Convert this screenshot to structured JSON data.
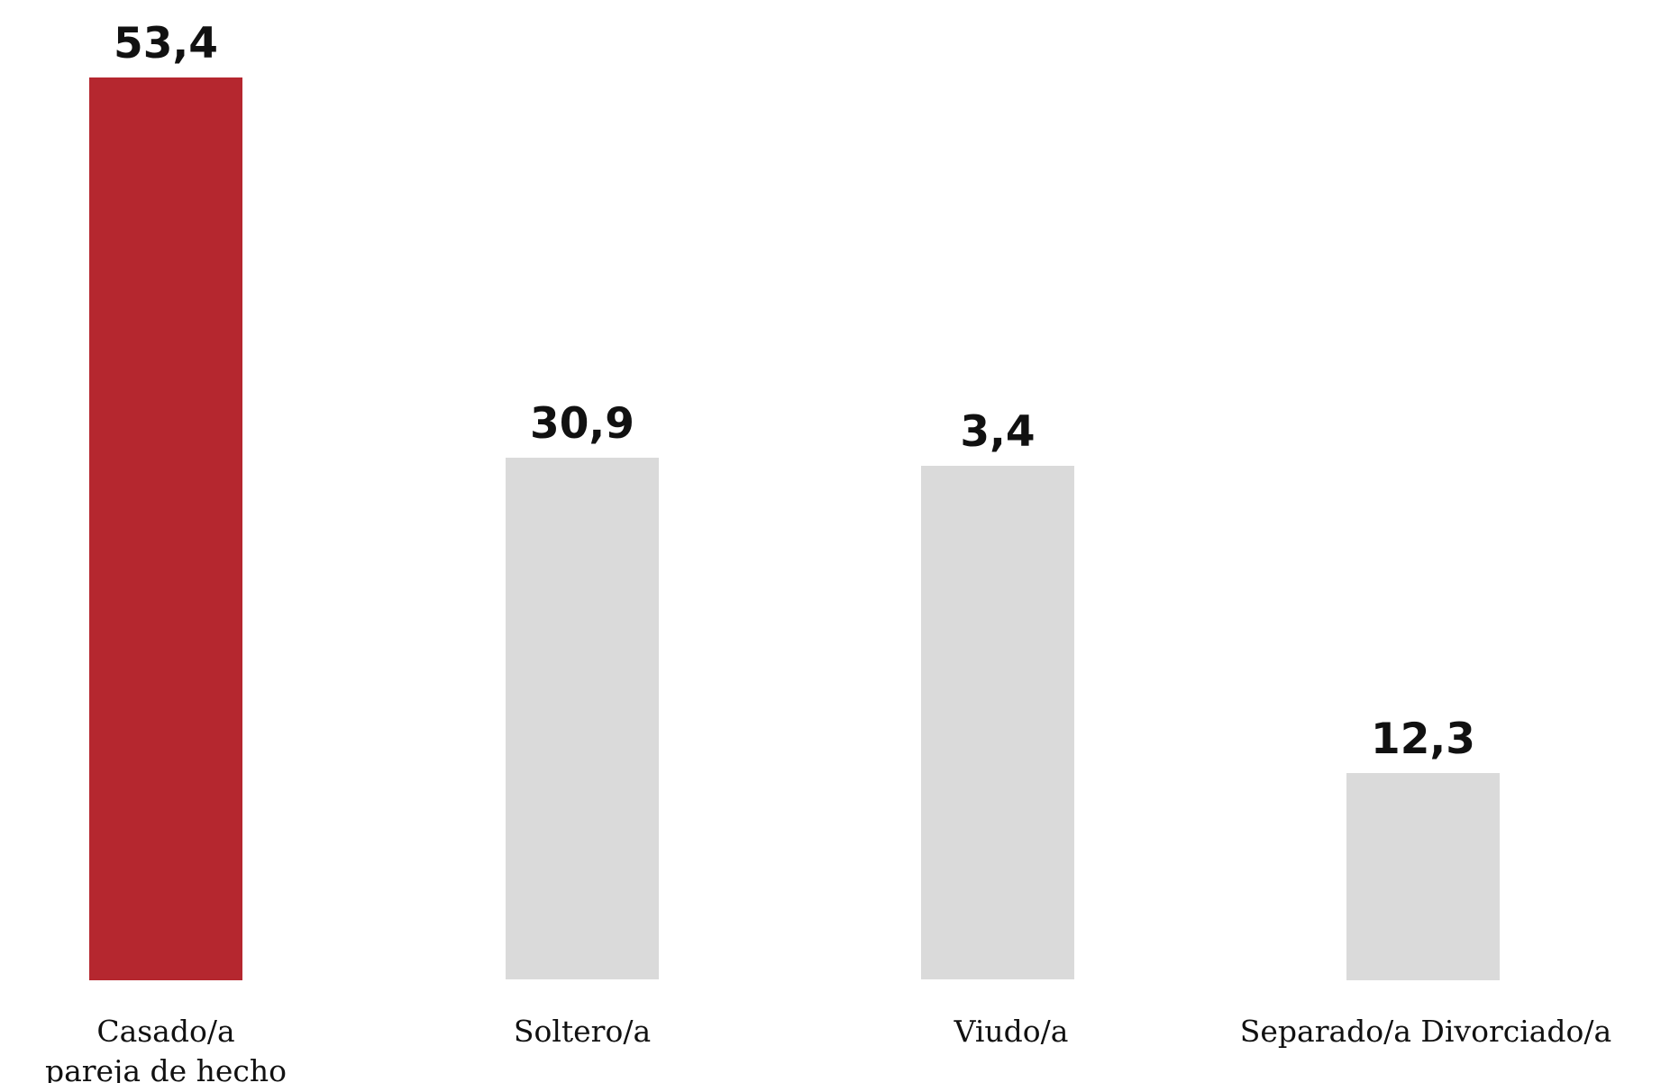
{
  "chart_data": {
    "type": "bar",
    "categories": [
      [
        "Casado/a",
        "pareja de hecho"
      ],
      [
        "Soltero/a"
      ],
      [
        "Viudo/a"
      ],
      [
        "Separado/a Divorciado/a"
      ]
    ],
    "values": [
      53.4,
      30.9,
      3.4,
      12.3
    ],
    "value_labels": [
      "53,4",
      "30,9",
      "3,4",
      "12,3"
    ],
    "colors": [
      "#b5272f",
      "#dadada",
      "#dadada",
      "#dadada"
    ],
    "title": "",
    "xlabel": "",
    "ylabel": "",
    "grid": false,
    "legend": "none"
  }
}
